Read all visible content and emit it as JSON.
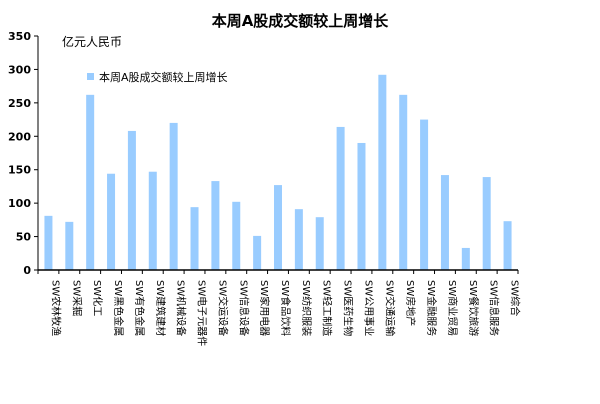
{
  "chart_data": {
    "type": "bar",
    "title": "本周A股成交额较上周增长",
    "ylabel": "亿元人民币",
    "xlabel": "",
    "ylim": [
      0,
      350
    ],
    "yticks": [
      0,
      50,
      100,
      150,
      200,
      250,
      300,
      350
    ],
    "grid": false,
    "legend": "top-left",
    "bar_color": "#99ccff",
    "categories": [
      "SW农林牧渔",
      "SW采掘",
      "SW化工",
      "SW黑色金属",
      "SW有色金属",
      "SW建筑建材",
      "SW机械设备",
      "SW电子元器件",
      "SW交运设备",
      "SW信息设备",
      "SW家用电器",
      "SW食品饮料",
      "SW纺织服装",
      "SW轻工制造",
      "SW医药生物",
      "SW公用事业",
      "SW交通运输",
      "SW房地产",
      "SW金融服务",
      "SW商业贸易",
      "SW餐饮旅游",
      "SW信息服务",
      "SW综合"
    ],
    "series": [
      {
        "name": "本周A股成交额较上周增长",
        "values": [
          81,
          72,
          262,
          144,
          208,
          147,
          220,
          94,
          133,
          102,
          51,
          127,
          91,
          79,
          214,
          190,
          292,
          262,
          225,
          142,
          33,
          139,
          73
        ]
      }
    ]
  }
}
